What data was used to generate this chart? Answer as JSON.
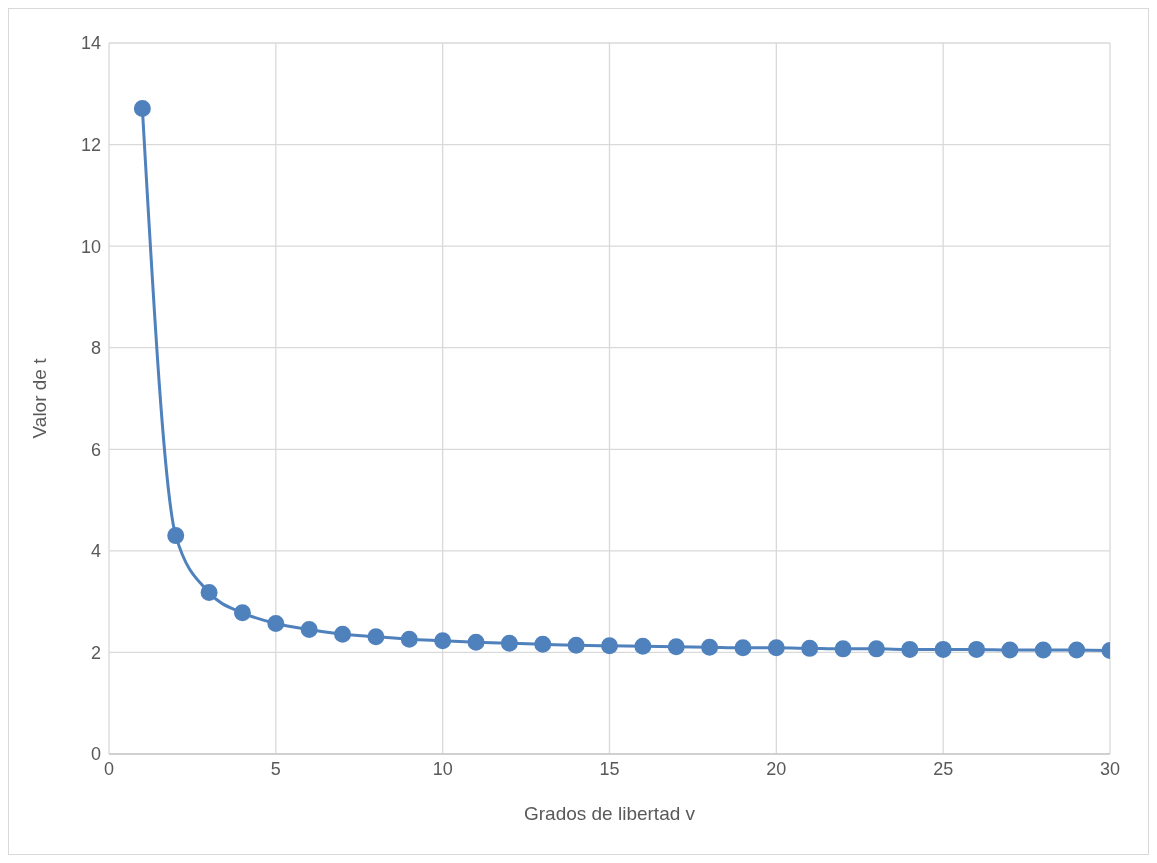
{
  "chart_data": {
    "type": "line",
    "xlabel": "Grados de libertad v",
    "ylabel": "Valor  de t",
    "x": [
      1,
      2,
      3,
      4,
      5,
      6,
      7,
      8,
      9,
      10,
      11,
      12,
      13,
      14,
      15,
      16,
      17,
      18,
      19,
      20,
      21,
      22,
      23,
      24,
      25,
      26,
      27,
      28,
      29,
      30
    ],
    "series": [
      {
        "color": "#4f81bd",
        "values": [
          12.71,
          4.3,
          3.18,
          2.78,
          2.57,
          2.45,
          2.36,
          2.31,
          2.26,
          2.23,
          2.2,
          2.18,
          2.16,
          2.14,
          2.13,
          2.12,
          2.11,
          2.1,
          2.09,
          2.09,
          2.08,
          2.07,
          2.07,
          2.06,
          2.06,
          2.06,
          2.05,
          2.05,
          2.05,
          2.04
        ]
      }
    ],
    "xlim": [
      0,
      30
    ],
    "xticks": [
      0,
      5,
      10,
      15,
      20,
      25,
      30
    ],
    "ylim": [
      0,
      14
    ],
    "yticks": [
      0,
      2,
      4,
      6,
      8,
      10,
      12,
      14
    ],
    "grid": true,
    "marker": "circle",
    "line_style": "solid",
    "legend": false
  }
}
